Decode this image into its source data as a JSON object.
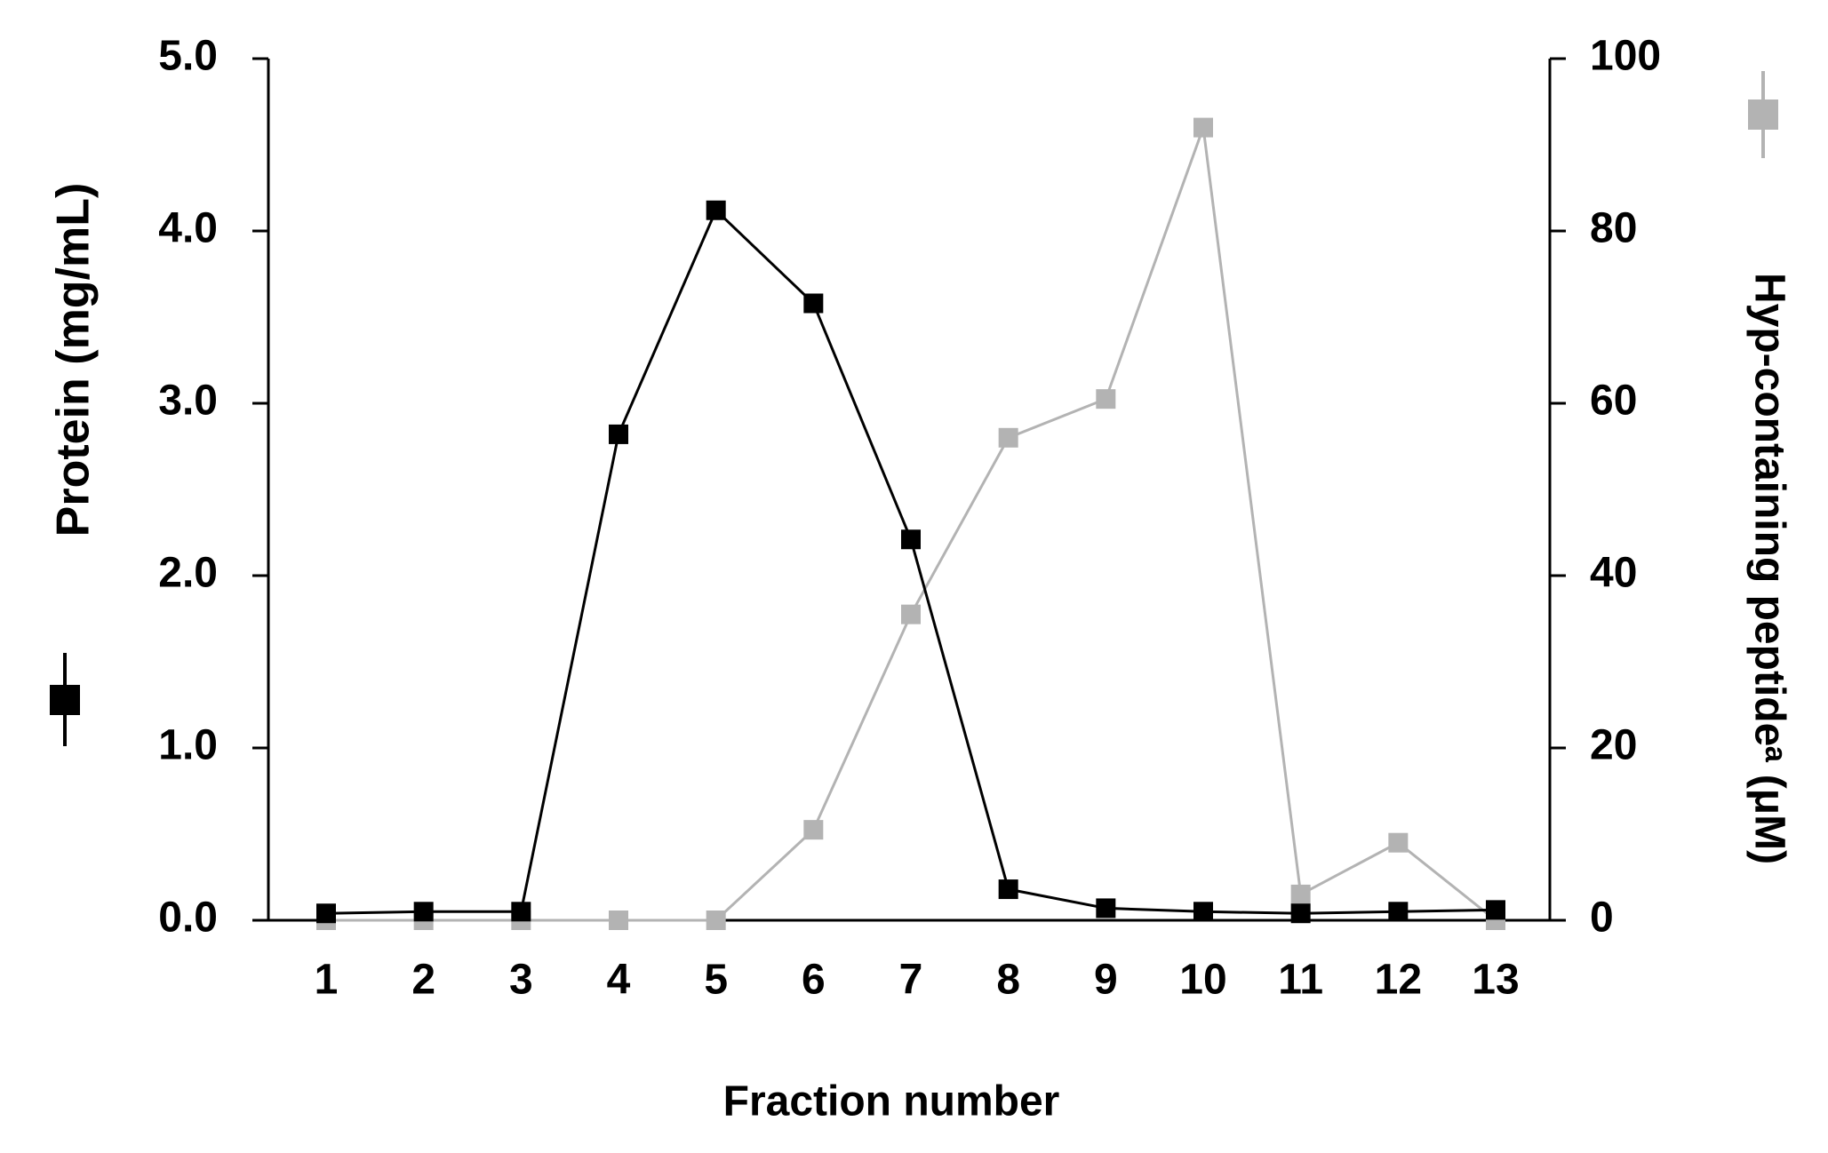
{
  "chart_data": {
    "type": "line",
    "categories": [
      "1",
      "2",
      "3",
      "4",
      "5",
      "6",
      "7",
      "8",
      "9",
      "10",
      "11",
      "12",
      "13"
    ],
    "x_label": "Fraction number",
    "y_label": "Protein  (mg/mL)",
    "y2_label": "Hyp-containing peptideᵃ (μM)",
    "ylim": [
      0,
      5
    ],
    "yticks": [
      {
        "value": 0,
        "label": "0.0"
      },
      {
        "value": 1,
        "label": "1.0"
      },
      {
        "value": 2,
        "label": "2.0"
      },
      {
        "value": 3,
        "label": "3.0"
      },
      {
        "value": 4,
        "label": "4.0"
      },
      {
        "value": 5,
        "label": "5.0"
      }
    ],
    "y2lim": [
      0,
      100
    ],
    "y2ticks": [
      0,
      20,
      40,
      60,
      80,
      100
    ],
    "series": [
      {
        "color": "#000000",
        "values": [
          0.04,
          0.05,
          0.05,
          2.82,
          4.12,
          3.58,
          2.21,
          0.18,
          0.07,
          0.05,
          0.04,
          0.05,
          0.06
        ]
      },
      {
        "color": "#b3b3b3",
        "axis": "y2",
        "values": [
          0,
          0,
          0,
          0,
          0,
          10.5,
          35.5,
          56,
          60.5,
          92,
          3,
          9,
          0
        ]
      }
    ]
  }
}
